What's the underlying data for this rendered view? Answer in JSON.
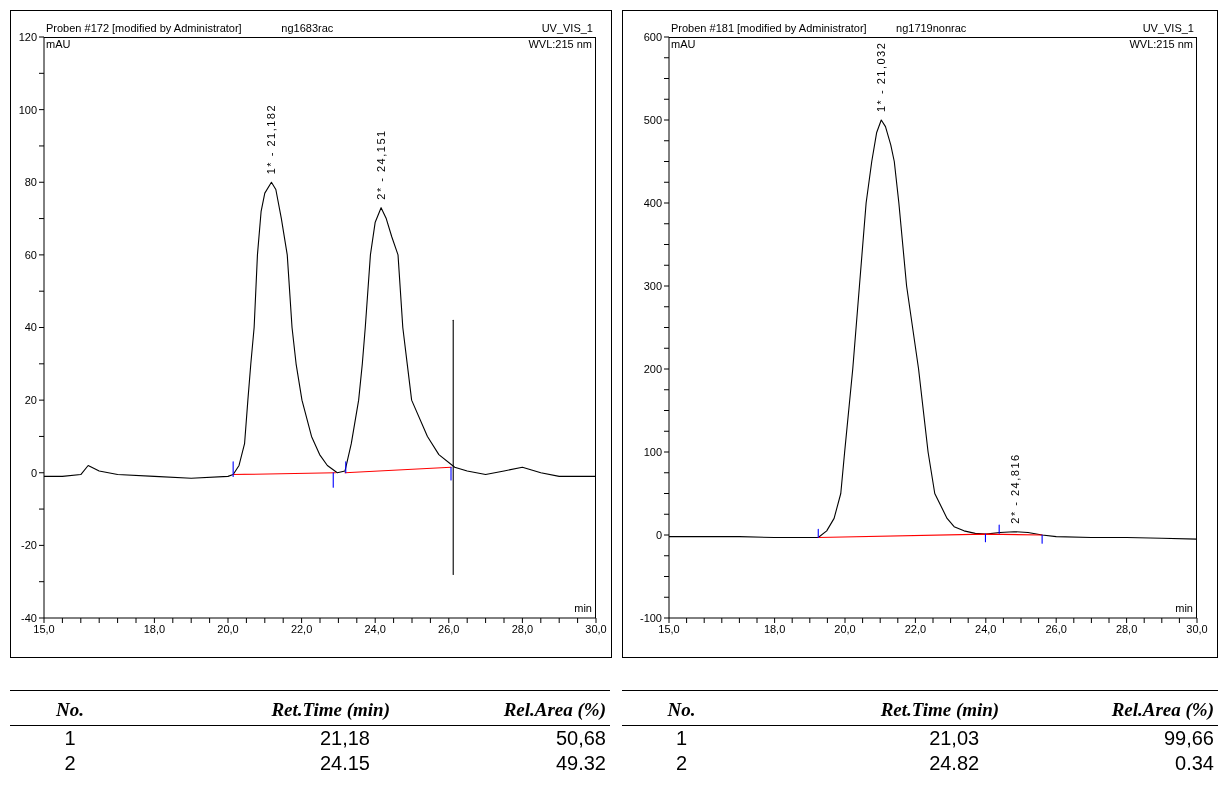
{
  "chart_data": [
    {
      "type": "line",
      "title": "Proben #172 [modified by Administrator]",
      "subtitle": "ng1683rac",
      "xlabel": "min",
      "ylabel": "mAU",
      "xlim": [
        15,
        30
      ],
      "ylim": [
        -40,
        120
      ],
      "xticks": [
        {
          "value": 15,
          "label": "15,0"
        },
        {
          "value": 15.5,
          "label": null
        },
        {
          "value": 16,
          "label": null
        },
        {
          "value": 16.5,
          "label": null
        },
        {
          "value": 17,
          "label": null
        },
        {
          "value": 17.5,
          "label": null
        },
        {
          "value": 18,
          "label": "18,0"
        },
        {
          "value": 18.5,
          "label": null
        },
        {
          "value": 19,
          "label": null
        },
        {
          "value": 19.5,
          "label": null
        },
        {
          "value": 20,
          "label": "20,0"
        },
        {
          "value": 20.5,
          "label": null
        },
        {
          "value": 21,
          "label": null
        },
        {
          "value": 21.5,
          "label": null
        },
        {
          "value": 22,
          "label": "22,0"
        },
        {
          "value": 22.5,
          "label": null
        },
        {
          "value": 23,
          "label": null
        },
        {
          "value": 23.5,
          "label": null
        },
        {
          "value": 24,
          "label": "24,0"
        },
        {
          "value": 24.5,
          "label": null
        },
        {
          "value": 25,
          "label": null
        },
        {
          "value": 25.5,
          "label": null
        },
        {
          "value": 26,
          "label": "26,0"
        },
        {
          "value": 26.5,
          "label": null
        },
        {
          "value": 27,
          "label": null
        },
        {
          "value": 27.5,
          "label": null
        },
        {
          "value": 28,
          "label": "28,0"
        },
        {
          "value": 28.5,
          "label": null
        },
        {
          "value": 29,
          "label": null
        },
        {
          "value": 29.5,
          "label": null
        },
        {
          "value": 30,
          "label": "30,0"
        }
      ],
      "yticks": [
        -40,
        {
          "value": -30,
          "label": null
        },
        -20,
        {
          "value": -10,
          "label": null
        },
        0,
        {
          "value": 10,
          "label": null
        },
        20,
        {
          "value": 30,
          "label": null
        },
        40,
        {
          "value": 50,
          "label": null
        },
        60,
        {
          "value": 70,
          "label": null
        },
        80,
        {
          "value": 90,
          "label": null
        },
        100,
        {
          "value": 110,
          "label": null
        },
        120
      ],
      "series": [
        {
          "type": "line",
          "color": "#000000",
          "x": [
            15,
            15.5,
            16,
            16.2,
            16.5,
            17,
            18,
            19,
            20,
            20.14,
            20.3,
            20.45,
            20.54,
            20.62,
            20.71,
            20.8,
            20.9,
            21,
            21.18,
            21.3,
            21.45,
            21.61,
            21.74,
            21.85,
            22.01,
            22.27,
            22.49,
            22.7,
            22.97,
            23.18,
            23.35,
            23.55,
            23.65,
            23.73,
            23.87,
            24,
            24.16,
            24.3,
            24.45,
            24.62,
            24.75,
            24.87,
            24.99,
            25.42,
            25.73,
            26.16,
            26.5,
            27,
            27.5,
            28,
            28.5,
            29,
            30
          ],
          "values": [
            -1,
            -1,
            -0.5,
            2,
            0.5,
            -0.5,
            -1,
            -1.5,
            -1,
            -0.5,
            2,
            8,
            20,
            30,
            40,
            60,
            72,
            77,
            80,
            78,
            70,
            60,
            40,
            30,
            20,
            10,
            5,
            2,
            0,
            0.5,
            8,
            20,
            30,
            40,
            60,
            69,
            73,
            70,
            65,
            60,
            40,
            30,
            20,
            10,
            5,
            1.5,
            0.5,
            -0.5,
            0.5,
            1.5,
            0,
            -1,
            -1
          ]
        },
        {
          "type": "line",
          "color": "#ff0000",
          "x": [
            20.14,
            22.92,
            23.0,
            23.18,
            26.06
          ],
          "values": [
            -0.5,
            0,
            null,
            0,
            1.5
          ]
        },
        {
          "type": "line",
          "color": "#000000",
          "x": [
            26.12,
            26.12
          ],
          "values": [
            -28,
            42
          ]
        },
        {
          "type": "line",
          "color": "#0000ff",
          "x": [
            20.14,
            20.14,
            20.15,
            22.86,
            22.86,
            22.87,
            23.2,
            23.2,
            23.21,
            26.06,
            26.06
          ],
          "values": [
            -1,
            3,
            null,
            -4,
            0,
            null,
            0,
            3,
            null,
            -2,
            1.5
          ]
        }
      ],
      "annotations": [
        "UV_VIS_1",
        "WVL:215 nm",
        {
          "text": "1* - 21,182",
          "x": 21.182,
          "y": 80
        },
        {
          "text": "2* - 24,151",
          "x": 24.151,
          "y": 73
        }
      ]
    },
    {
      "type": "line",
      "title": "Proben #181 [modified by Administrator]",
      "subtitle": "ng1719nonrac",
      "xlabel": "min",
      "ylabel": "mAU",
      "xlim": [
        15,
        30
      ],
      "ylim": [
        -100,
        600
      ],
      "xticks": [
        {
          "value": 15,
          "label": "15,0"
        },
        {
          "value": 15.5,
          "label": null
        },
        {
          "value": 16,
          "label": null
        },
        {
          "value": 16.5,
          "label": null
        },
        {
          "value": 17,
          "label": null
        },
        {
          "value": 17.5,
          "label": null
        },
        {
          "value": 18,
          "label": "18,0"
        },
        {
          "value": 18.5,
          "label": null
        },
        {
          "value": 19,
          "label": null
        },
        {
          "value": 19.5,
          "label": null
        },
        {
          "value": 20,
          "label": "20,0"
        },
        {
          "value": 20.5,
          "label": null
        },
        {
          "value": 21,
          "label": null
        },
        {
          "value": 21.5,
          "label": null
        },
        {
          "value": 22,
          "label": "22,0"
        },
        {
          "value": 22.5,
          "label": null
        },
        {
          "value": 23,
          "label": null
        },
        {
          "value": 23.5,
          "label": null
        },
        {
          "value": 24,
          "label": "24,0"
        },
        {
          "value": 24.5,
          "label": null
        },
        {
          "value": 25,
          "label": null
        },
        {
          "value": 25.5,
          "label": null
        },
        {
          "value": 26,
          "label": "26,0"
        },
        {
          "value": 26.5,
          "label": null
        },
        {
          "value": 27,
          "label": null
        },
        {
          "value": 27.5,
          "label": null
        },
        {
          "value": 28,
          "label": "28,0"
        },
        {
          "value": 28.5,
          "label": null
        },
        {
          "value": 29,
          "label": null
        },
        {
          "value": 29.5,
          "label": null
        },
        {
          "value": 30,
          "label": "30,0"
        }
      ],
      "yticks": [
        -100,
        {
          "value": -75,
          "label": null
        },
        {
          "value": -50,
          "label": null
        },
        {
          "value": -25,
          "label": null
        },
        0,
        {
          "value": 25,
          "label": null
        },
        {
          "value": 50,
          "label": null
        },
        {
          "value": 75,
          "label": null
        },
        100,
        {
          "value": 125,
          "label": null
        },
        {
          "value": 150,
          "label": null
        },
        {
          "value": 175,
          "label": null
        },
        200,
        {
          "value": 225,
          "label": null
        },
        {
          "value": 250,
          "label": null
        },
        {
          "value": 275,
          "label": null
        },
        300,
        {
          "value": 325,
          "label": null
        },
        {
          "value": 350,
          "label": null
        },
        {
          "value": 375,
          "label": null
        },
        400,
        {
          "value": 425,
          "label": null
        },
        {
          "value": 450,
          "label": null
        },
        {
          "value": 475,
          "label": null
        },
        500,
        {
          "value": 525,
          "label": null
        },
        {
          "value": 550,
          "label": null
        },
        {
          "value": 575,
          "label": null
        },
        600
      ],
      "series": [
        {
          "type": "line",
          "color": "#000000",
          "x": [
            15,
            16,
            17,
            18,
            19,
            19.24,
            19.48,
            19.69,
            19.88,
            19.99,
            20.22,
            20.41,
            20.6,
            20.76,
            20.9,
            21.03,
            21.15,
            21.3,
            21.4,
            21.53,
            21.75,
            22.09,
            22.36,
            22.55,
            22.9,
            23.1,
            23.38,
            23.7,
            24,
            24.4,
            24.8,
            25.2,
            25.6,
            26,
            27,
            28,
            29,
            30
          ],
          "values": [
            -2,
            -2,
            -2,
            -3,
            -3,
            -3,
            5,
            20,
            50,
            100,
            200,
            300,
            400,
            450,
            485,
            500,
            492,
            470,
            450,
            400,
            300,
            200,
            100,
            50,
            20,
            10,
            5,
            2,
            1,
            3,
            4,
            3,
            0,
            -2,
            -3,
            -3,
            -4,
            -5
          ]
        },
        {
          "type": "line",
          "color": "#ff0000",
          "x": [
            19.24,
            24.0,
            25.6
          ],
          "values": [
            -3,
            1,
            0
          ]
        },
        {
          "type": "line",
          "color": "#0000ff",
          "x": [
            19.24,
            19.24,
            19.25,
            23.99,
            23.99,
            24.0,
            24.38,
            24.38,
            24.39,
            25.6,
            25.6
          ],
          "values": [
            -3,
            7,
            null,
            -8,
            1,
            null,
            2,
            12,
            null,
            -10,
            0
          ]
        }
      ],
      "annotations": [
        "UV_VIS_1",
        "WVL:215 nm",
        {
          "text": "1* - 21,032",
          "x": 21.032,
          "y": 500
        },
        {
          "text": "2* - 24,816",
          "x": 24.816,
          "y": 4
        }
      ]
    },
    {
      "type": "other",
      "annotations": [
        "No.",
        "Ret.Time (min)",
        "Rel.Area (%)",
        "1",
        "21,18",
        "50,68",
        "2",
        "24.15",
        "49.32"
      ]
    },
    {
      "type": "other",
      "annotations": [
        "No.",
        "Ret.Time (min)",
        "Rel.Area (%)",
        "1",
        "21,03",
        "99,66",
        "2",
        "24.82",
        "0.34"
      ]
    }
  ]
}
